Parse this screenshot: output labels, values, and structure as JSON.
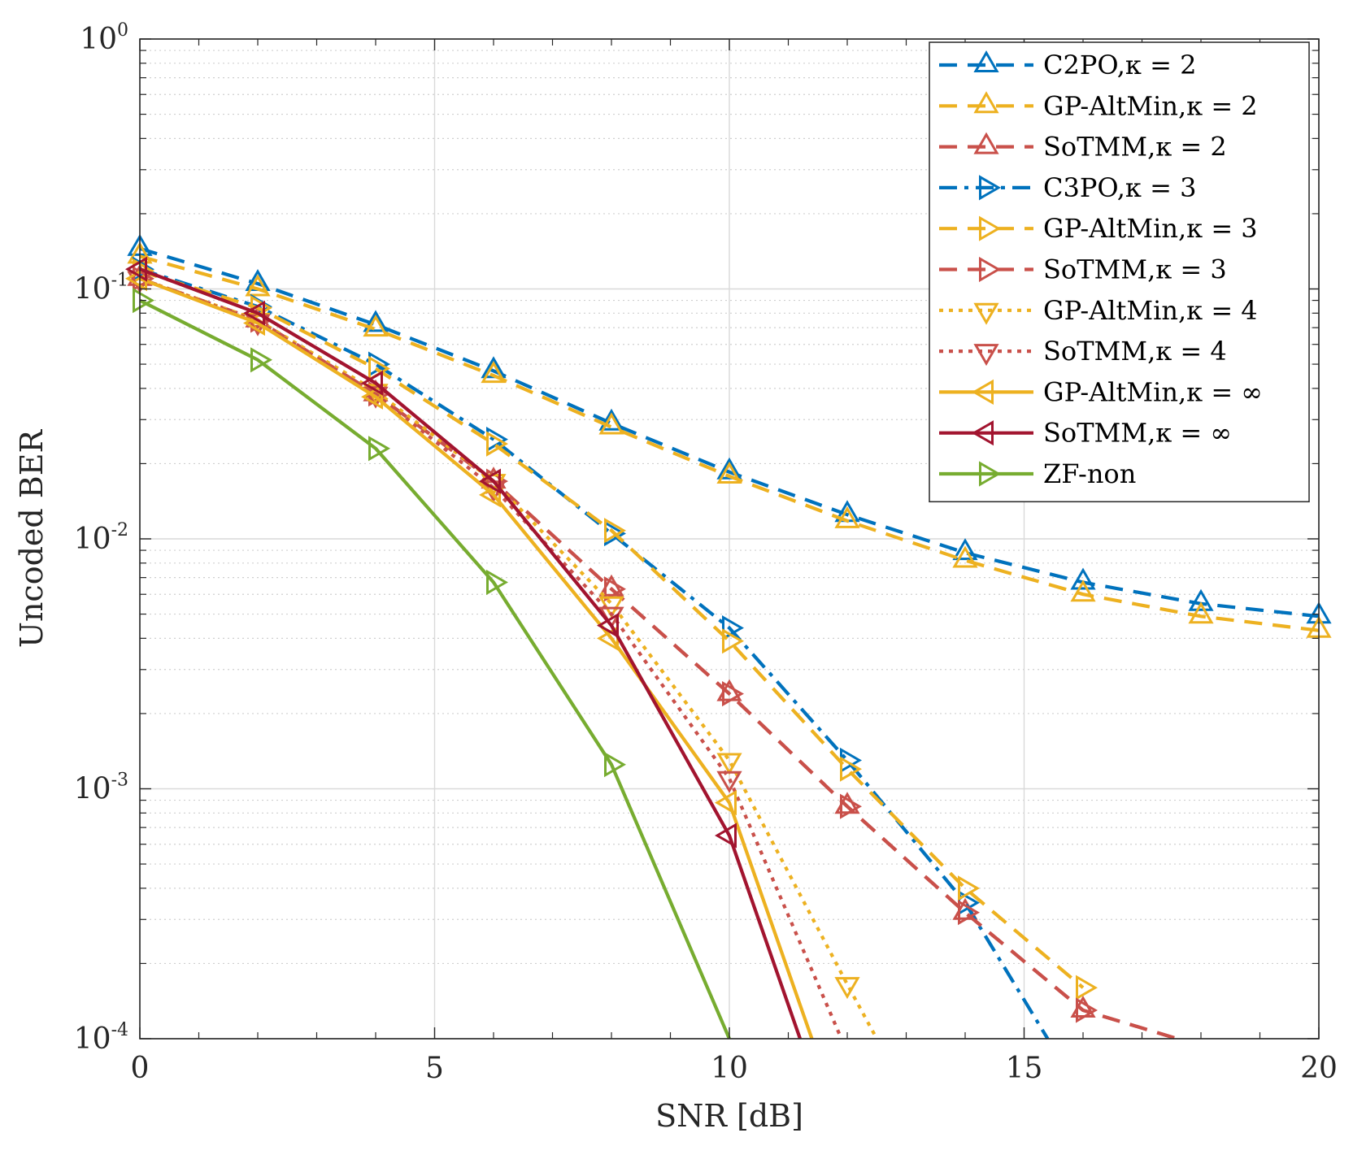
{
  "chart_data": {
    "type": "line",
    "title": "",
    "xlabel": "SNR [dB]",
    "ylabel": "Uncoded BER",
    "xlim": [
      0,
      20
    ],
    "ylim": [
      0.0001,
      1
    ],
    "yscale": "log",
    "grid": true,
    "legend_position": "top-right",
    "x_ticks": [
      0,
      5,
      10,
      15,
      20
    ],
    "x_tick_labels": [
      "0",
      "5",
      "10",
      "15",
      "20"
    ],
    "y_ticks": [
      {
        "value": 1,
        "base": "10",
        "exp": "0"
      },
      {
        "value": 0.1,
        "base": "10",
        "exp": "-1"
      },
      {
        "value": 0.01,
        "base": "10",
        "exp": "-2"
      },
      {
        "value": 0.001,
        "base": "10",
        "exp": "-3"
      },
      {
        "value": 0.0001,
        "base": "10",
        "exp": "-4"
      }
    ],
    "colors": {
      "blue": "#0072BD",
      "orange": "#EDB120",
      "red": "#C9504A",
      "darkred": "#A2142F",
      "green": "#77AC30",
      "axis": "#262626",
      "grid": "#d9d9d9"
    },
    "series": [
      {
        "name": "C2PO,κ = 2",
        "color": "#0072BD",
        "dash": "dashed",
        "marker": "triangle-up",
        "x": [
          0,
          2,
          4,
          6,
          8,
          10,
          12,
          14,
          16,
          18,
          20
        ],
        "y": [
          0.145,
          0.105,
          0.072,
          0.047,
          0.029,
          0.0185,
          0.0125,
          0.0088,
          0.0067,
          0.0055,
          0.0049
        ]
      },
      {
        "name": "GP-AltMin,κ = 2",
        "color": "#EDB120",
        "dash": "dashed",
        "marker": "triangle-up",
        "x": [
          0,
          2,
          4,
          6,
          8,
          10,
          12,
          14,
          16,
          18,
          20
        ],
        "y": [
          0.135,
          0.1,
          0.069,
          0.045,
          0.028,
          0.0178,
          0.0118,
          0.0082,
          0.006,
          0.0049,
          0.0043
        ]
      },
      {
        "name": "SoTMM,κ = 2",
        "color": "#C9504A",
        "dash": "dashed",
        "marker": "triangle-up",
        "x": [
          0,
          2,
          4,
          6,
          8,
          10,
          12,
          14,
          16,
          17.6
        ],
        "y": [
          0.11,
          0.075,
          0.038,
          0.017,
          0.0063,
          0.0024,
          0.00085,
          0.00032,
          0.00013,
          0.0001
        ]
      },
      {
        "name": "C3PO,κ = 3",
        "color": "#0072BD",
        "dash": "dashdot",
        "marker": "triangle-right",
        "x": [
          0,
          2,
          4,
          6,
          8,
          10,
          12,
          14,
          15.4
        ],
        "y": [
          0.12,
          0.085,
          0.05,
          0.025,
          0.0105,
          0.0044,
          0.0013,
          0.00035,
          0.0001
        ]
      },
      {
        "name": "GP-AltMin,κ = 3",
        "color": "#EDB120",
        "dash": "dashed",
        "marker": "triangle-right",
        "x": [
          0,
          2,
          4,
          6,
          8,
          10,
          12,
          14,
          16
        ],
        "y": [
          0.118,
          0.084,
          0.048,
          0.024,
          0.0108,
          0.0039,
          0.0012,
          0.0004,
          0.00016
        ]
      },
      {
        "name": "SoTMM,κ = 3",
        "color": "#C9504A",
        "dash": "dashed",
        "marker": "triangle-right",
        "x": [
          0,
          2,
          4,
          6,
          8,
          10,
          12,
          14,
          16,
          17.6
        ],
        "y": [
          0.11,
          0.075,
          0.038,
          0.017,
          0.0063,
          0.0024,
          0.00085,
          0.00032,
          0.00013,
          0.0001
        ]
      },
      {
        "name": "GP-AltMin,κ = 4",
        "color": "#EDB120",
        "dash": "dotted",
        "marker": "triangle-down",
        "x": [
          0,
          2,
          4,
          6,
          8,
          10,
          12,
          12.5
        ],
        "y": [
          0.11,
          0.075,
          0.039,
          0.017,
          0.0055,
          0.0013,
          0.000165,
          0.0001
        ]
      },
      {
        "name": "SoTMM,κ = 4",
        "color": "#C9504A",
        "dash": "dotted",
        "marker": "triangle-down",
        "x": [
          0,
          2,
          4,
          6,
          8,
          10,
          11.9
        ],
        "y": [
          0.11,
          0.074,
          0.038,
          0.016,
          0.005,
          0.0011,
          0.0001
        ]
      },
      {
        "name": "GP-AltMin,κ = ∞",
        "color": "#EDB120",
        "dash": "solid",
        "marker": "triangle-left",
        "x": [
          0,
          2,
          4,
          6,
          8,
          10,
          11.4
        ],
        "y": [
          0.11,
          0.073,
          0.037,
          0.015,
          0.004,
          0.00088,
          0.0001
        ]
      },
      {
        "name": "SoTMM,κ = ∞",
        "color": "#A2142F",
        "dash": "solid",
        "marker": "triangle-left",
        "x": [
          0,
          2,
          4,
          6,
          8,
          10,
          11.2
        ],
        "y": [
          0.12,
          0.08,
          0.042,
          0.017,
          0.0045,
          0.00065,
          0.0001
        ]
      },
      {
        "name": "ZF-non",
        "color": "#77AC30",
        "dash": "solid",
        "marker": "triangle-right",
        "x": [
          0,
          2,
          4,
          6,
          8,
          10
        ],
        "y": [
          0.09,
          0.052,
          0.023,
          0.0067,
          0.00125,
          0.0001
        ]
      }
    ]
  }
}
